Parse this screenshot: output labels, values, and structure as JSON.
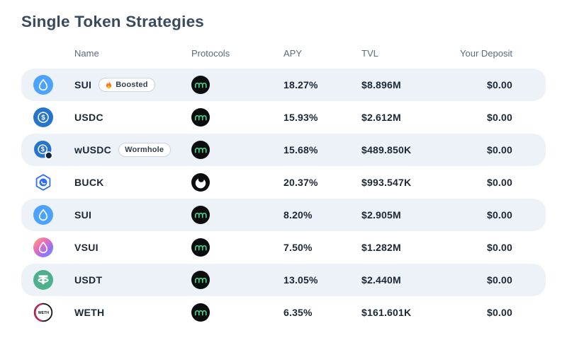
{
  "page": {
    "title": "Single Token Strategies"
  },
  "table": {
    "headers": {
      "name": "Name",
      "protocols": "Protocols",
      "apy": "APY",
      "tvl": "TVL",
      "deposit": "Your Deposit"
    },
    "rows": [
      {
        "name": "SUI",
        "badge": "Boosted",
        "badge_icon": "flame-icon",
        "token_icon": "sui-token-icon",
        "protocol_icon": "mole-protocol-icon",
        "apy": "18.27%",
        "tvl": "$8.896M",
        "deposit": "$0.00"
      },
      {
        "name": "USDC",
        "token_icon": "usdc-token-icon",
        "protocol_icon": "mole-protocol-icon",
        "apy": "15.93%",
        "tvl": "$2.612M",
        "deposit": "$0.00"
      },
      {
        "name": "wUSDC",
        "badge": "Wormhole",
        "token_icon": "wusdc-token-icon",
        "protocol_icon": "mole-protocol-icon",
        "apy": "15.68%",
        "tvl": "$489.850K",
        "deposit": "$0.00"
      },
      {
        "name": "BUCK",
        "token_icon": "buck-token-icon",
        "protocol_icon": "bucket-protocol-icon",
        "apy": "20.37%",
        "tvl": "$993.547K",
        "deposit": "$0.00"
      },
      {
        "name": "SUI",
        "token_icon": "sui-token-icon",
        "protocol_icon": "mole-protocol-icon",
        "apy": "8.20%",
        "tvl": "$2.905M",
        "deposit": "$0.00"
      },
      {
        "name": "VSUI",
        "token_icon": "vsui-token-icon",
        "protocol_icon": "mole-protocol-icon",
        "apy": "7.50%",
        "tvl": "$1.282M",
        "deposit": "$0.00"
      },
      {
        "name": "USDT",
        "token_icon": "usdt-token-icon",
        "protocol_icon": "mole-protocol-icon",
        "apy": "13.05%",
        "tvl": "$2.440M",
        "deposit": "$0.00"
      },
      {
        "name": "WETH",
        "token_icon": "weth-token-icon",
        "protocol_icon": "mole-protocol-icon",
        "apy": "6.35%",
        "tvl": "$161.601K",
        "deposit": "$0.00"
      }
    ]
  },
  "colors": {
    "stripe_bg": "#EDF1F8",
    "title_text": "#3A4A5E",
    "value_text": "#1C2736",
    "header_text": "#5A6A7D",
    "sui_blue": "#4CA3FF",
    "usdc_blue": "#2775CA",
    "buck_blue": "#2F6FF2",
    "usdt_green": "#4CB08F",
    "weth_accent": "#C2285A",
    "mole_green": "#3FD68F",
    "flame_orange": "#F97316"
  }
}
